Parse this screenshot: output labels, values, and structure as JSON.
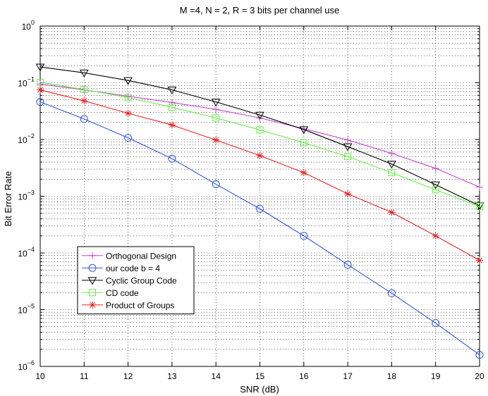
{
  "chart_data": {
    "type": "line",
    "title": "M =4,  N = 2,  R = 3 bits per channel use",
    "xlabel": "SNR (dB)",
    "ylabel": "Bit Error Rate",
    "xlim": [
      10,
      20
    ],
    "ylim": [
      1e-06,
      1
    ],
    "yscale": "log",
    "grid": true,
    "legend_position": "lower-left",
    "x_ticks": [
      10,
      11,
      12,
      13,
      14,
      15,
      16,
      17,
      18,
      19,
      20
    ],
    "y_tick_labels": [
      {
        "exp": -6,
        "base": "10",
        "sup": "−6"
      },
      {
        "exp": -5,
        "base": "10",
        "sup": "−5"
      },
      {
        "exp": -4,
        "base": "10",
        "sup": "−4"
      },
      {
        "exp": -3,
        "base": "10",
        "sup": "−3"
      },
      {
        "exp": -2,
        "base": "10",
        "sup": "−2"
      },
      {
        "exp": -1,
        "base": "10",
        "sup": "−1"
      },
      {
        "exp": 0,
        "base": "10",
        "sup": "0"
      }
    ],
    "x": [
      10,
      11,
      12,
      13,
      14,
      15,
      16,
      17,
      18,
      19,
      20
    ],
    "series": [
      {
        "name": "Orthogonal Design",
        "color": "#cc44cc",
        "marker": "plus",
        "values": [
          0.095,
          0.075,
          0.058,
          0.045,
          0.034,
          0.024,
          0.0155,
          0.0098,
          0.0057,
          0.0031,
          0.00145
        ]
      },
      {
        "name": "our code b = 4",
        "color": "#3355dd",
        "marker": "circle",
        "values": [
          0.046,
          0.023,
          0.0107,
          0.0046,
          0.00163,
          0.0006,
          0.0002,
          6.2e-05,
          1.95e-05,
          5.8e-06,
          1.6e-06
        ]
      },
      {
        "name": "Cyclic Group Code",
        "color": "#000000",
        "marker": "triangle-down",
        "values": [
          0.19,
          0.15,
          0.11,
          0.075,
          0.046,
          0.027,
          0.015,
          0.0075,
          0.0037,
          0.0016,
          0.00068
        ]
      },
      {
        "name": "CD code",
        "color": "#66ee44",
        "marker": "square",
        "values": [
          0.102,
          0.076,
          0.055,
          0.037,
          0.024,
          0.0148,
          0.0088,
          0.005,
          0.0026,
          0.0013,
          0.00066
        ]
      },
      {
        "name": "Product of Groups",
        "color": "#ee2222",
        "marker": "star",
        "values": [
          0.075,
          0.048,
          0.029,
          0.018,
          0.0098,
          0.0052,
          0.0026,
          0.0011,
          0.00052,
          0.0002,
          7.4e-05
        ]
      }
    ]
  }
}
